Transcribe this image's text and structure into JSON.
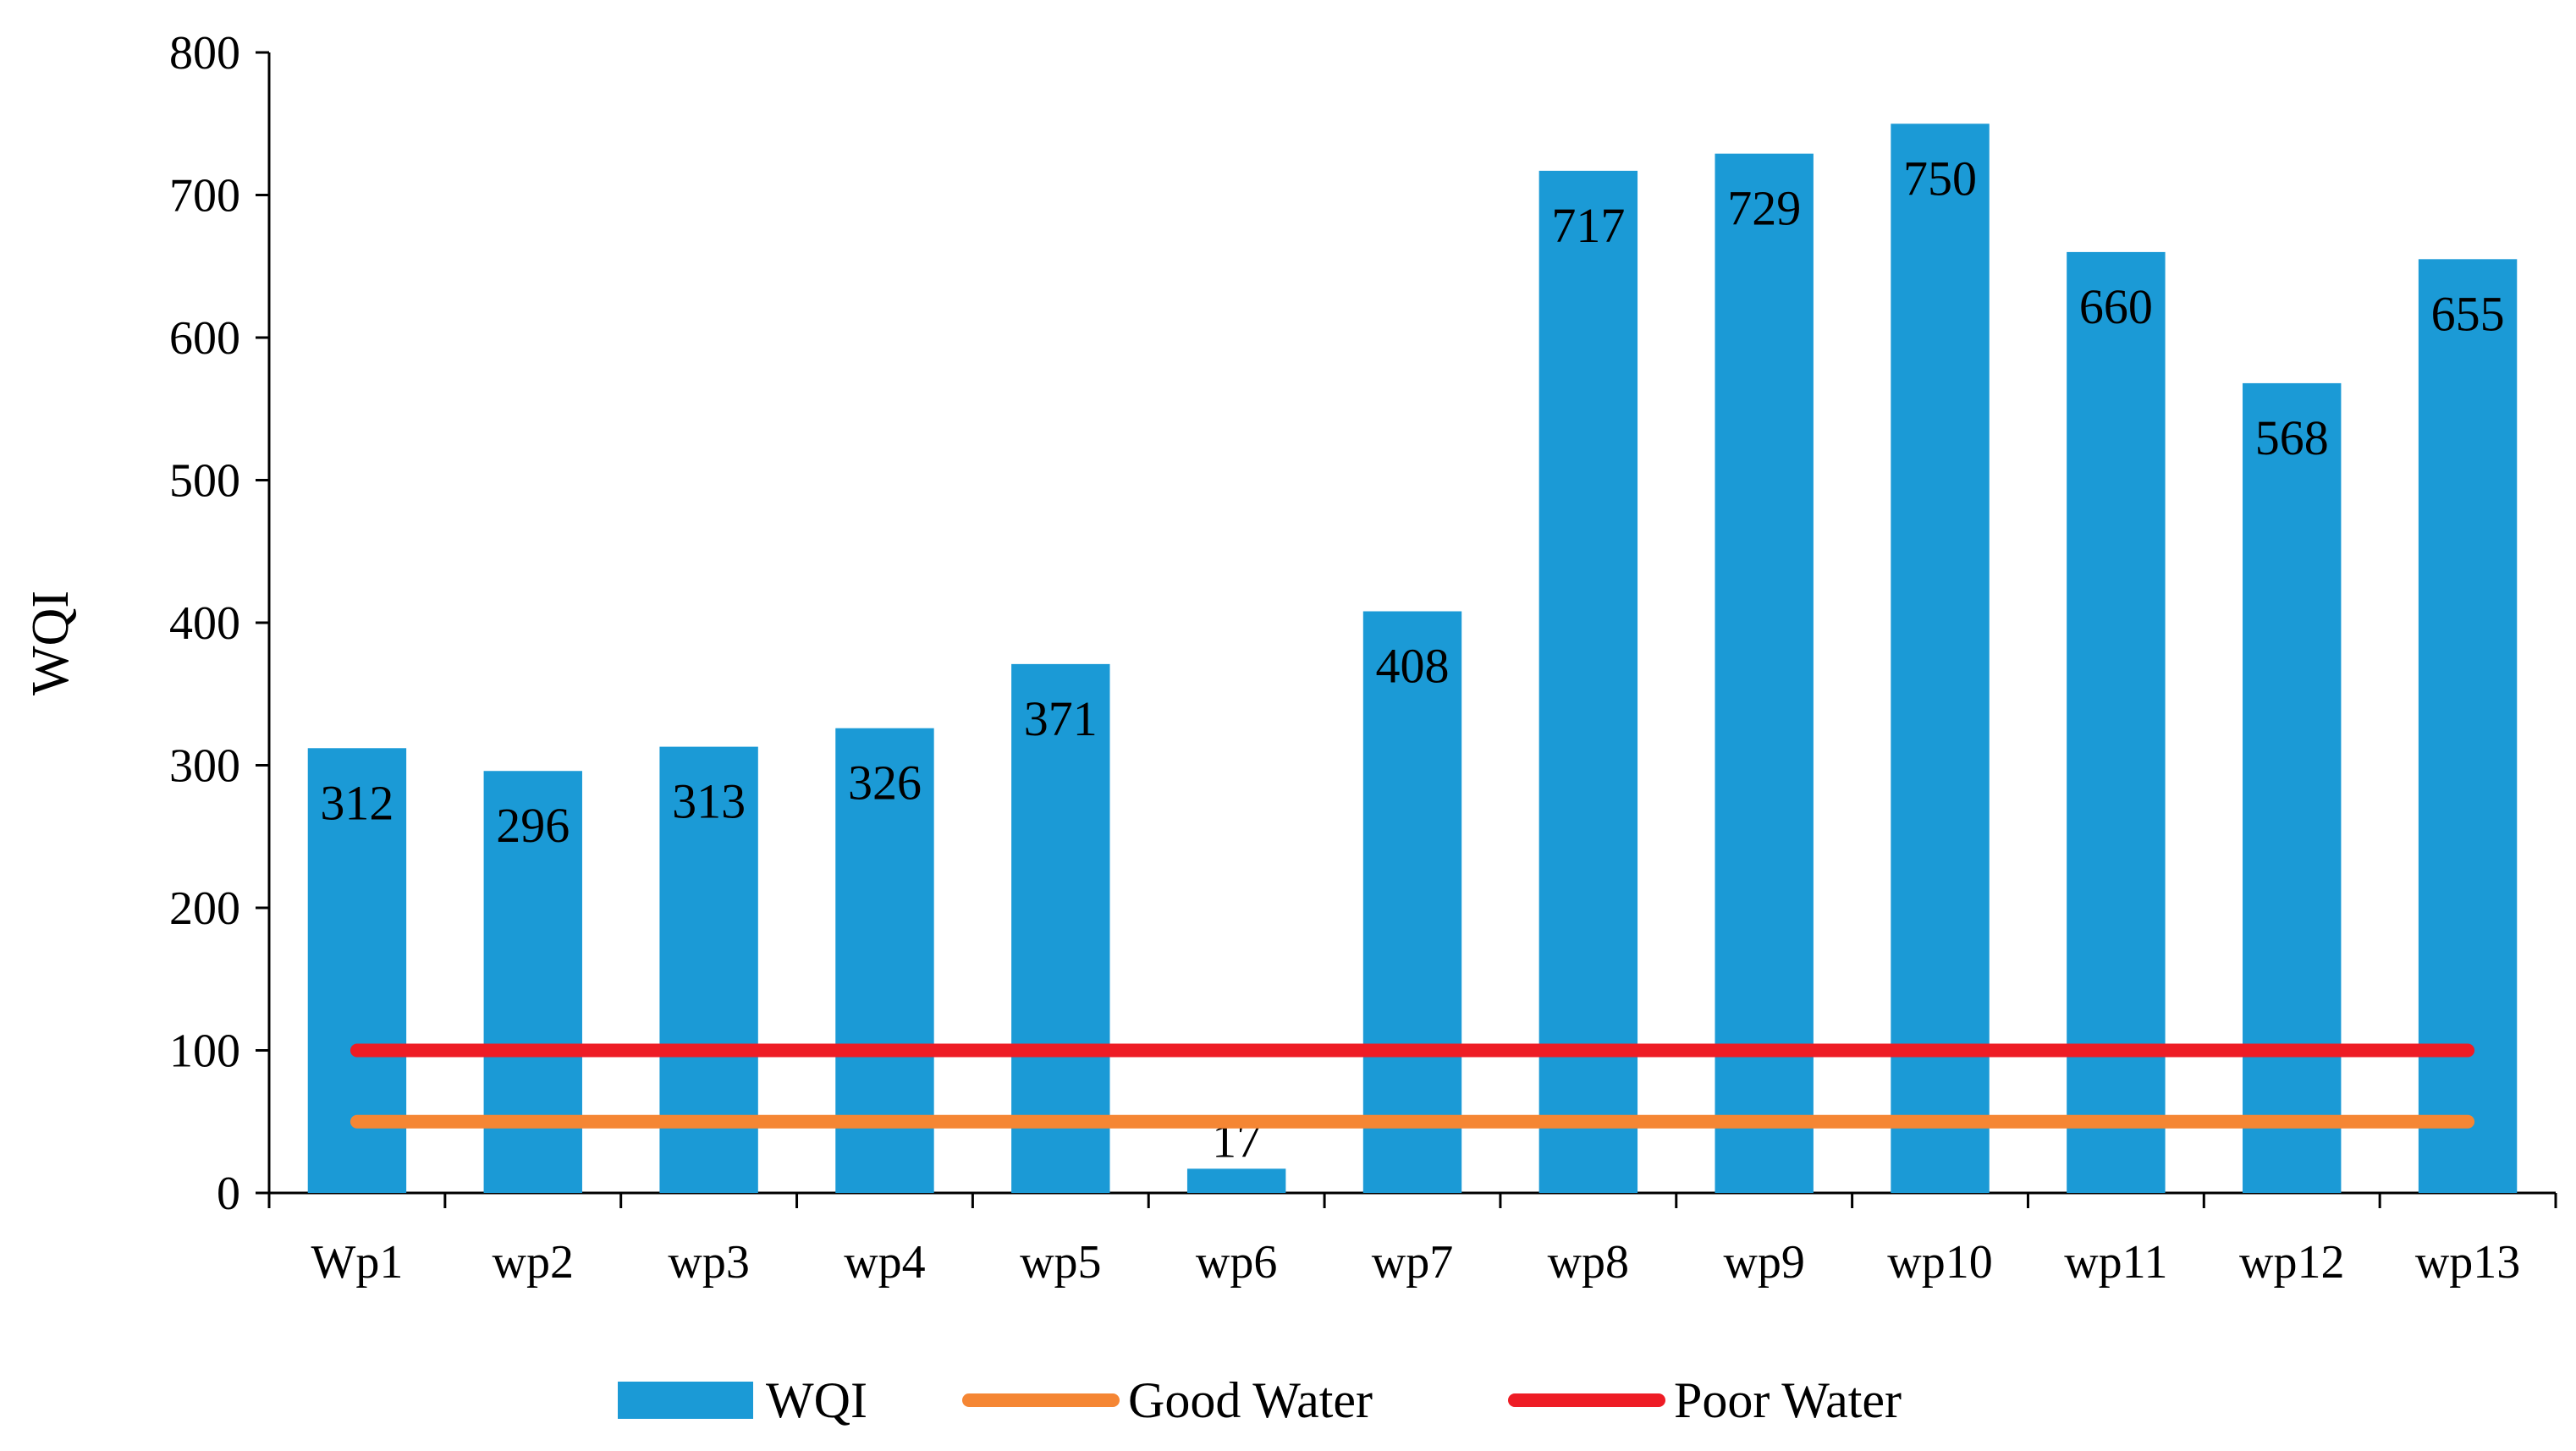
{
  "chart_data": {
    "type": "bar",
    "title": "",
    "xlabel": "",
    "ylabel": "WQI",
    "ylim": [
      0,
      800
    ],
    "yticks": [
      0,
      100,
      200,
      300,
      400,
      500,
      600,
      700,
      800
    ],
    "categories": [
      "Wp1",
      "wp2",
      "wp3",
      "wp4",
      "wp5",
      "wp6",
      "wp7",
      "wp8",
      "wp9",
      "wp10",
      "wp11",
      "wp12",
      "wp13"
    ],
    "series": [
      {
        "name": "WQI",
        "type": "bar",
        "color": "#1B9AD6",
        "values": [
          312,
          296,
          313,
          326,
          371,
          17,
          408,
          717,
          729,
          750,
          660,
          568,
          655
        ]
      },
      {
        "name": "Good Water",
        "type": "line",
        "color": "#F58634",
        "values": [
          50,
          50,
          50,
          50,
          50,
          50,
          50,
          50,
          50,
          50,
          50,
          50,
          50
        ]
      },
      {
        "name": "Poor Water",
        "type": "line",
        "color": "#EE1C25",
        "values": [
          100,
          100,
          100,
          100,
          100,
          100,
          100,
          100,
          100,
          100,
          100,
          100,
          100
        ]
      }
    ],
    "legend": {
      "position": "bottom",
      "items": [
        "WQI",
        "Good Water",
        "Poor Water"
      ]
    },
    "grid": false
  }
}
